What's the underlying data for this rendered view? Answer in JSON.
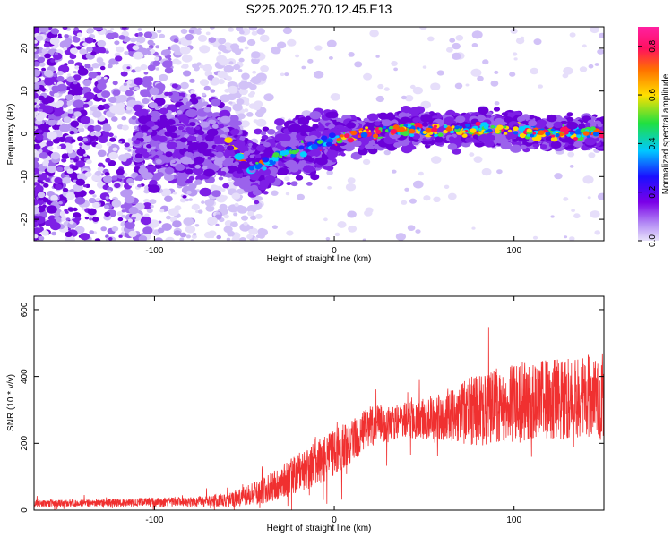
{
  "figure_title": "S225.2025.270.12.45.E13",
  "chart_data": [
    {
      "type": "heatmap",
      "title": "S225.2025.270.12.45.E13",
      "xlabel": "Height of straight line (km)",
      "ylabel": "Frequency (Hz)",
      "xlim": [
        -167,
        150
      ],
      "ylim": [
        -25,
        25
      ],
      "x_ticks": [
        -100,
        0,
        100
      ],
      "y_ticks": [
        20,
        10,
        0,
        -10,
        -20
      ],
      "colorbar": {
        "label": "Normalized spectral amplitude",
        "range": [
          0.0,
          0.88
        ],
        "ticks": [
          "0.0",
          "0.2",
          "0.4",
          "0.6",
          "0.8"
        ],
        "colormap": [
          "#e8e2fb",
          "#7b00e8",
          "#1a10ff",
          "#00c8ff",
          "#20e040",
          "#ffe000",
          "#ff7000",
          "#ff1060",
          "#ff20a0"
        ]
      },
      "ridge": {
        "description_points_x": [
          -60,
          -45,
          -30,
          -15,
          0,
          20,
          40,
          60,
          80,
          100,
          120,
          150
        ],
        "center_frequency": [
          -2,
          -8,
          -5,
          -3,
          -1,
          0,
          1,
          1,
          1,
          1,
          0,
          0
        ]
      }
    },
    {
      "type": "line",
      "xlabel": "Height of straight line (km)",
      "ylabel": "SNR (10 * v/v)",
      "xlim": [
        -167,
        150
      ],
      "ylim": [
        0,
        640
      ],
      "x_ticks": [
        -100,
        0,
        100
      ],
      "y_ticks": [
        0,
        200,
        400,
        600
      ],
      "series_color": "#f03030",
      "envelope": {
        "x": [
          -167,
          -120,
          -80,
          -60,
          -40,
          -20,
          0,
          20,
          40,
          60,
          80,
          100,
          120,
          150
        ],
        "mean": [
          20,
          22,
          25,
          30,
          55,
          110,
          170,
          250,
          270,
          280,
          300,
          320,
          330,
          340
        ],
        "spread": [
          10,
          12,
          15,
          20,
          40,
          60,
          70,
          60,
          55,
          70,
          110,
          120,
          120,
          130
        ]
      }
    }
  ]
}
